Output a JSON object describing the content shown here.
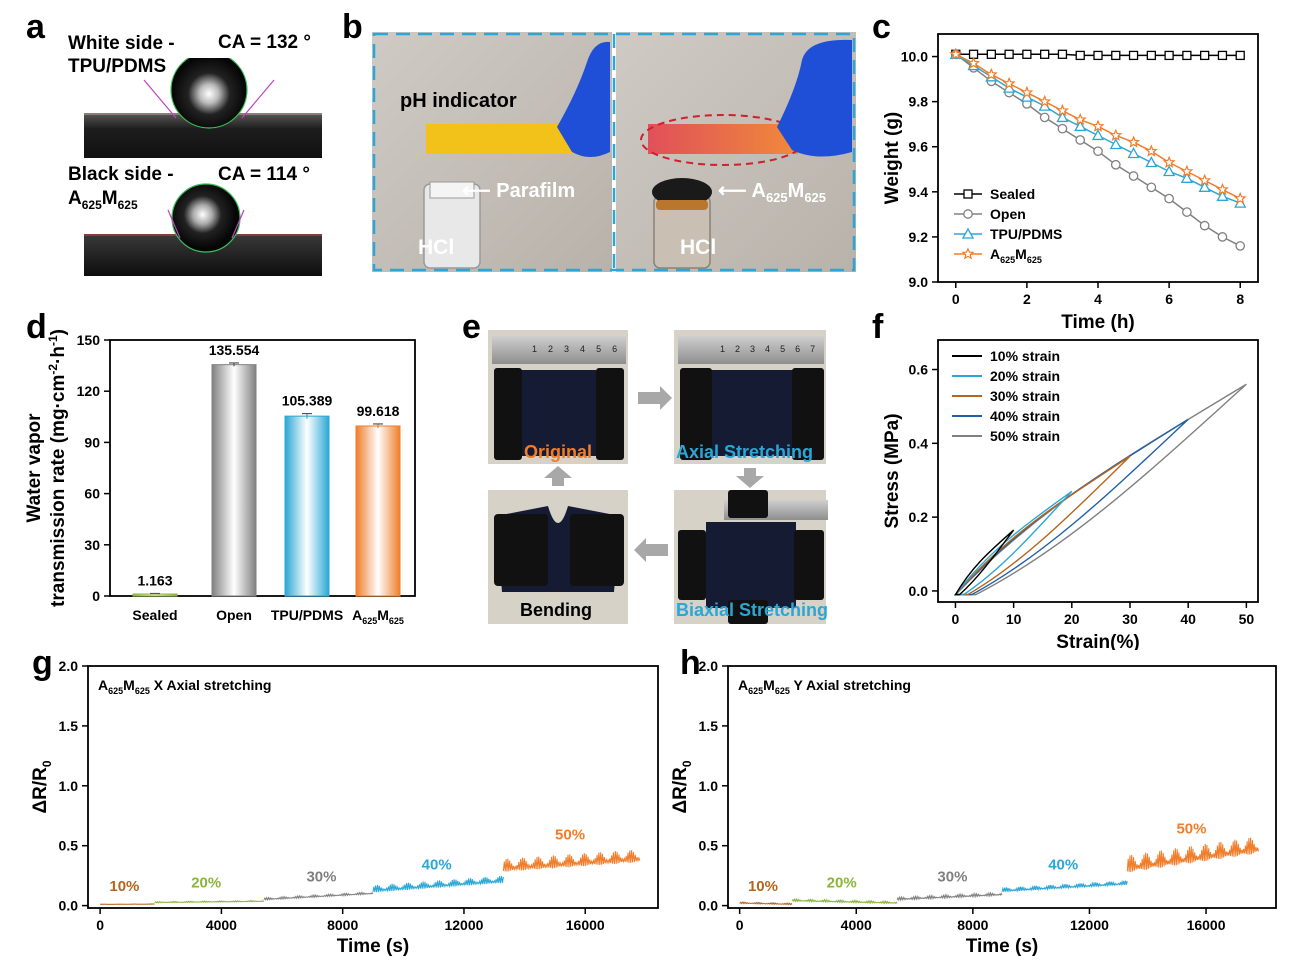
{
  "panels": {
    "a": "a",
    "b": "b",
    "c": "c",
    "d": "d",
    "e": "e",
    "f": "f",
    "g": "g",
    "h": "h"
  },
  "panel_a": {
    "top": {
      "side": "White side -",
      "material": "TPU/PDMS",
      "ca": "CA = 132 °"
    },
    "bottom": {
      "side": "Black side -",
      "material_a": "A",
      "sub1": "625",
      "material_m": "M",
      "sub2": "625",
      "ca": "CA = 114 °"
    }
  },
  "panel_b": {
    "indicator_label": "pH indicator",
    "left_seal": "Parafilm",
    "right_seal_a": "A",
    "right_seal_sub1": "625",
    "right_seal_m": "M",
    "right_seal_sub2": "625",
    "acid_left": "HCl",
    "acid_right": "HCl",
    "colors": {
      "strip_left": "#f2c21a",
      "strip_right_start": "#e0505a",
      "strip_right_end": "#f08a3a",
      "frame": "#2aa7d6",
      "glove": "#1e4fd6"
    }
  },
  "panel_e": {
    "original": "Original",
    "axial": "Axial Stretching",
    "biaxial": "Biaxial Stretching",
    "bending": "Bending",
    "ruler_numbers": [
      "1",
      "2",
      "3",
      "4",
      "5",
      "6",
      "7"
    ],
    "colors": {
      "original": "#ef7d2a",
      "stretch": "#2aa7d6",
      "bending": "#000000"
    }
  },
  "chart_data": [
    {
      "id": "c",
      "type": "line",
      "xlabel": "Time (h)",
      "ylabel": "Weight (g)",
      "xlim": [
        -0.5,
        8.5
      ],
      "ylim": [
        9.0,
        10.1
      ],
      "xticks": [
        0,
        2,
        4,
        6,
        8
      ],
      "yticks": [
        9.0,
        9.2,
        9.4,
        9.6,
        9.8,
        10.0
      ],
      "x": [
        0,
        0.5,
        1,
        1.5,
        2,
        2.5,
        3,
        3.5,
        4,
        4.5,
        5,
        5.5,
        6,
        6.5,
        7,
        7.5,
        8
      ],
      "series": [
        {
          "name": "Sealed",
          "color": "#000000",
          "marker": "square",
          "values": [
            10.01,
            10.01,
            10.01,
            10.01,
            10.01,
            10.01,
            10.01,
            10.005,
            10.005,
            10.005,
            10.005,
            10.005,
            10.005,
            10.005,
            10.005,
            10.005,
            10.005
          ]
        },
        {
          "name": "Open",
          "color": "#808080",
          "marker": "circle",
          "values": [
            10.01,
            9.95,
            9.89,
            9.84,
            9.79,
            9.73,
            9.68,
            9.63,
            9.58,
            9.52,
            9.47,
            9.42,
            9.37,
            9.31,
            9.25,
            9.2,
            9.16
          ]
        },
        {
          "name": "TPU/PDMS",
          "color": "#2aa7d6",
          "marker": "triangle",
          "values": [
            10.01,
            9.96,
            9.91,
            9.86,
            9.82,
            9.78,
            9.73,
            9.69,
            9.65,
            9.61,
            9.57,
            9.53,
            9.49,
            9.46,
            9.42,
            9.38,
            9.35
          ]
        },
        {
          "name_a": "A",
          "name_sub1": "625",
          "name_m": "M",
          "name_sub2": "625",
          "color": "#f07d2a",
          "marker": "star",
          "values": [
            10.01,
            9.97,
            9.92,
            9.88,
            9.84,
            9.8,
            9.76,
            9.72,
            9.69,
            9.65,
            9.62,
            9.58,
            9.53,
            9.49,
            9.45,
            9.41,
            9.37
          ]
        }
      ]
    },
    {
      "id": "d",
      "type": "bar",
      "ylabel_line1": "Water vapor",
      "ylabel_line2": "transmission rate (mg·cm",
      "ylabel_sup": "-2",
      "ylabel_mid": "·h",
      "ylabel_sup2": "-1",
      "ylabel_end": ")",
      "ylim": [
        0,
        150
      ],
      "yticks": [
        0,
        30,
        60,
        90,
        120,
        150
      ],
      "categories": [
        "Sealed",
        "Open",
        "TPU/PDMS"
      ],
      "category4": {
        "a": "A",
        "sub1": "625",
        "m": "M",
        "sub2": "625"
      },
      "values": [
        1.163,
        135.554,
        105.389,
        99.618
      ],
      "labels": [
        "1.163",
        "135.554",
        "105.389",
        "99.618"
      ],
      "errors": [
        0.3,
        1.0,
        1.5,
        1.2
      ],
      "colors": [
        "#8ab43a",
        "#808080",
        "#2aa7d6",
        "#f07d2a"
      ]
    },
    {
      "id": "f",
      "type": "line",
      "xlabel": "Strain(%)",
      "ylabel": "Stress (MPa)",
      "xlim": [
        -3,
        52
      ],
      "ylim": [
        -0.03,
        0.68
      ],
      "xticks": [
        0,
        10,
        20,
        30,
        40,
        50
      ],
      "yticks": [
        0.0,
        0.2,
        0.4,
        0.6
      ],
      "series": [
        {
          "name": "10% strain",
          "color": "#000000",
          "max_strain": 10,
          "max_stress": 0.165
        },
        {
          "name": "20% strain",
          "color": "#2aa7d6",
          "max_strain": 20,
          "max_stress": 0.27
        },
        {
          "name": "30% strain",
          "color": "#b5651d",
          "max_strain": 30,
          "max_stress": 0.365
        },
        {
          "name": "40% strain",
          "color": "#1f5fa8",
          "max_strain": 40,
          "max_stress": 0.465
        },
        {
          "name": "50% strain",
          "color": "#808080",
          "max_strain": 50,
          "max_stress": 0.56
        }
      ]
    },
    {
      "id": "g",
      "type": "line",
      "title_a": "A",
      "title_sub1": "625",
      "title_m": "M",
      "title_sub2": "625",
      "title_rest": "X Axial stretching",
      "xlabel": "Time (s)",
      "ylabel_main": "ΔR/R",
      "ylabel_sub": "0",
      "xlim": [
        -400,
        18400
      ],
      "ylim": [
        -0.02,
        2.0
      ],
      "xticks": [
        0,
        4000,
        8000,
        12000,
        16000
      ],
      "yticks": [
        0.0,
        0.5,
        1.0,
        1.5,
        2.0
      ],
      "segments": [
        {
          "label": "10%",
          "color": "#b5651d",
          "t0": 0,
          "t1": 1800,
          "base0": 0.01,
          "base1": 0.012,
          "amp": 0.003,
          "label_x": 800,
          "label_y": 0.12
        },
        {
          "label": "20%",
          "color": "#8ab43a",
          "t0": 1800,
          "t1": 5400,
          "base0": 0.025,
          "base1": 0.035,
          "amp": 0.008,
          "label_x": 3500,
          "label_y": 0.15
        },
        {
          "label": "30%",
          "color": "#808080",
          "t0": 5400,
          "t1": 9000,
          "base0": 0.05,
          "base1": 0.1,
          "amp": 0.015,
          "label_x": 7300,
          "label_y": 0.2
        },
        {
          "label": "40%",
          "color": "#2aa7d6",
          "t0": 9000,
          "t1": 13300,
          "base0": 0.12,
          "base1": 0.2,
          "amp": 0.05,
          "label_x": 11100,
          "label_y": 0.3
        },
        {
          "label": "50%",
          "color": "#f07d2a",
          "t0": 13300,
          "t1": 17800,
          "base0": 0.3,
          "base1": 0.38,
          "amp": 0.09,
          "label_x": 15500,
          "label_y": 0.55
        }
      ]
    },
    {
      "id": "h",
      "type": "line",
      "title_a": "A",
      "title_sub1": "625",
      "title_m": "M",
      "title_sub2": "625",
      "title_rest": "Y Axial stretching",
      "xlabel": "Time (s)",
      "ylabel_main": "ΔR/R",
      "ylabel_sub": "0",
      "xlim": [
        -400,
        18400
      ],
      "ylim": [
        -0.02,
        2.0
      ],
      "xticks": [
        0,
        4000,
        8000,
        12000,
        16000
      ],
      "yticks": [
        0.0,
        0.5,
        1.0,
        1.5,
        2.0
      ],
      "segments": [
        {
          "label": "10%",
          "color": "#b5651d",
          "t0": 0,
          "t1": 1800,
          "base0": 0.02,
          "base1": 0.01,
          "amp": 0.01,
          "label_x": 800,
          "label_y": 0.12
        },
        {
          "label": "20%",
          "color": "#8ab43a",
          "t0": 1800,
          "t1": 5400,
          "base0": 0.04,
          "base1": 0.02,
          "amp": 0.015,
          "label_x": 3500,
          "label_y": 0.15
        },
        {
          "label": "30%",
          "color": "#808080",
          "t0": 5400,
          "t1": 9000,
          "base0": 0.05,
          "base1": 0.09,
          "amp": 0.02,
          "label_x": 7300,
          "label_y": 0.2
        },
        {
          "label": "40%",
          "color": "#2aa7d6",
          "t0": 9000,
          "t1": 13300,
          "base0": 0.12,
          "base1": 0.18,
          "amp": 0.03,
          "label_x": 11100,
          "label_y": 0.3
        },
        {
          "label": "50%",
          "color": "#f07d2a",
          "t0": 13300,
          "t1": 17800,
          "base0": 0.3,
          "base1": 0.46,
          "amp": 0.12,
          "label_x": 15500,
          "label_y": 0.6
        }
      ]
    }
  ]
}
